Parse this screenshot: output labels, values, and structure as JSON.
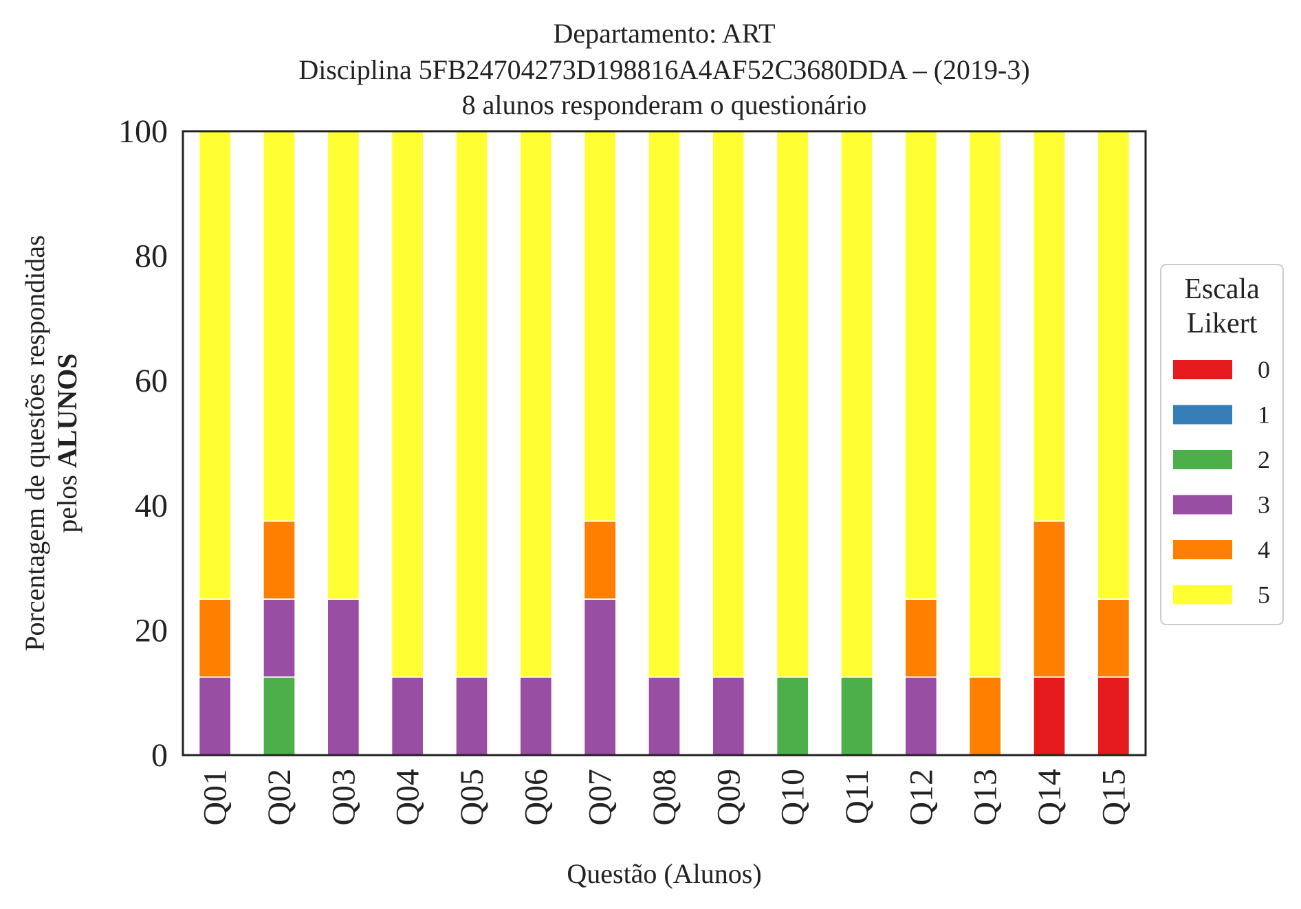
{
  "chart_data": {
    "type": "bar",
    "stacked": true,
    "title_lines": [
      "Departamento: ART",
      "Disciplina 5FB24704273D198816A4AF52C3680DDA – (2019-3)",
      "8 alunos responderam o questionário"
    ],
    "xlabel": "Questão (Alunos)",
    "ylabel_line1": "Porcentagem de questões respondidas",
    "ylabel_line2_prefix": "pelos ",
    "ylabel_line2_bold": "ALUNOS",
    "ylim": [
      0,
      100
    ],
    "yticks": [
      "0",
      "20",
      "40",
      "60",
      "80",
      "100"
    ],
    "categories": [
      "Q01",
      "Q02",
      "Q03",
      "Q04",
      "Q05",
      "Q06",
      "Q07",
      "Q08",
      "Q09",
      "Q10",
      "Q11",
      "Q12",
      "Q13",
      "Q14",
      "Q15"
    ],
    "legend_title_lines": [
      "Escala",
      "Likert"
    ],
    "legend_position": "center-right",
    "series": [
      {
        "name": "0",
        "color": "#e41a1c",
        "values": [
          0,
          0,
          0,
          0,
          0,
          0,
          0,
          0,
          0,
          0,
          0,
          0,
          0,
          12.5,
          12.5
        ]
      },
      {
        "name": "1",
        "color": "#377eb8",
        "values": [
          0,
          0,
          0,
          0,
          0,
          0,
          0,
          0,
          0,
          0,
          0,
          0,
          0,
          0,
          0
        ]
      },
      {
        "name": "2",
        "color": "#4daf4a",
        "values": [
          0,
          12.5,
          0,
          0,
          0,
          0,
          0,
          0,
          0,
          12.5,
          12.5,
          0,
          0,
          0,
          0
        ]
      },
      {
        "name": "3",
        "color": "#984ea3",
        "values": [
          12.5,
          12.5,
          25,
          12.5,
          12.5,
          12.5,
          25,
          12.5,
          12.5,
          0,
          0,
          12.5,
          0,
          0,
          0
        ]
      },
      {
        "name": "4",
        "color": "#ff7f00",
        "values": [
          12.5,
          12.5,
          0,
          0,
          0,
          0,
          12.5,
          0,
          0,
          0,
          0,
          12.5,
          12.5,
          25,
          12.5
        ]
      },
      {
        "name": "5",
        "color": "#ffff33",
        "values": [
          75,
          62.5,
          75,
          87.5,
          87.5,
          87.5,
          62.5,
          87.5,
          87.5,
          87.5,
          87.5,
          75,
          87.5,
          62.5,
          75
        ]
      }
    ]
  }
}
